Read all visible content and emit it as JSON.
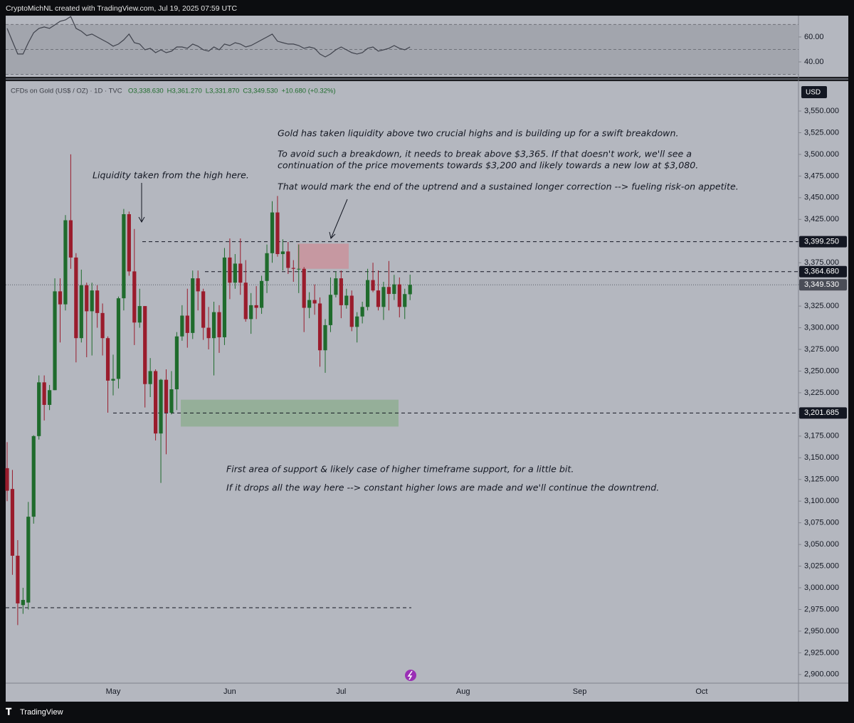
{
  "header": {
    "caption": "CryptoMichNL created with TradingView.com, Jul 19, 2025 07:59 UTC",
    "symbol": "CFDs on Gold (US$ / OZ) · 1D · TVC",
    "ohlc": [
      "O3,338.630",
      "H3,361.270",
      "L3,331.870",
      "C3,349.530",
      "+10.680 (+0.32%)"
    ],
    "currency": "USD"
  },
  "footer": {
    "brand": "TradingView"
  },
  "chart_data": {
    "type": "candlestick",
    "up_color": "#1f6b2c",
    "down_color": "#9a1c2c",
    "categories": [
      null,
      null,
      null,
      null,
      null,
      null,
      null,
      null,
      null,
      null,
      null,
      null,
      null,
      null,
      null,
      null,
      null,
      null,
      null,
      null,
      "May",
      null,
      null,
      null,
      null,
      null,
      null,
      null,
      null,
      null,
      null,
      null,
      null,
      null,
      null,
      null,
      null,
      null,
      null,
      null,
      null,
      null,
      "Jun",
      null,
      null,
      null,
      null,
      null,
      null,
      null,
      null,
      null,
      null,
      null,
      null,
      null,
      null,
      null,
      null,
      null,
      null,
      null,
      null,
      "Jul",
      null,
      null,
      null,
      null,
      null,
      null,
      null,
      null,
      null,
      null,
      null,
      null,
      null,
      null,
      null,
      null,
      null,
      null,
      null,
      null,
      null,
      null,
      "Aug",
      null,
      null,
      null,
      null,
      null,
      null,
      null,
      null,
      null,
      null,
      null,
      null,
      null,
      null,
      null,
      null,
      null,
      null,
      null,
      null,
      null,
      "Sep",
      null,
      null,
      null,
      null,
      null,
      null,
      null,
      null,
      null,
      null,
      null,
      null,
      null,
      null,
      null,
      null,
      null,
      null,
      null,
      null,
      null,
      null,
      "Oct",
      null,
      null,
      null,
      null,
      null,
      null,
      null,
      null,
      null,
      null,
      null,
      null,
      null,
      null,
      null,
      null,
      null
    ],
    "open": [
      3138,
      3114,
      3037,
      2980,
      2983,
      3082,
      3175,
      3237,
      3211,
      3228,
      3342,
      3327,
      3424,
      3381,
      3288,
      3349,
      3319,
      3343,
      3317,
      3288,
      3239,
      3241,
      3334,
      3431,
      3365,
      3306,
      3325,
      3235,
      3250,
      3178,
      3240,
      3202,
      3229,
      3290,
      3314,
      3294,
      3357,
      3342,
      3300,
      3288,
      3318,
      3289,
      3381,
      3352,
      3374,
      3352,
      3310,
      3326,
      3323,
      3354,
      3386,
      3433,
      3385,
      3388,
      3369,
      3368,
      3368,
      3323,
      3332,
      3328,
      3274,
      3303,
      3338,
      3357,
      3326,
      3337,
      3301,
      3313,
      3324,
      3355,
      3343,
      3324,
      3347,
      3339,
      3350,
      3324,
      3338.63,
      null,
      null,
      null,
      null,
      null,
      null,
      null,
      null,
      null,
      null,
      null,
      null,
      null,
      null,
      null,
      null,
      null,
      null,
      null,
      null,
      null,
      null,
      null,
      null,
      null,
      null,
      null,
      null,
      null,
      null,
      null,
      null,
      null,
      null,
      null,
      null,
      null,
      null,
      null,
      null,
      null,
      null,
      null,
      null,
      null,
      null,
      null,
      null,
      null,
      null,
      null,
      null,
      null,
      null,
      null,
      null,
      null,
      null,
      null,
      null,
      null,
      null,
      null,
      null,
      null,
      null,
      null,
      null,
      null,
      null,
      null,
      null
    ],
    "high": [
      3168,
      3136,
      3055,
      3000,
      3099,
      3176,
      3245,
      3245,
      3234,
      3357,
      3357,
      3430,
      3500,
      3386,
      3367,
      3352,
      3352,
      3349,
      3328,
      3290,
      3269,
      3336,
      3437,
      3434,
      3414,
      3345,
      3325,
      3265,
      3252,
      3241,
      3252,
      3250,
      3295,
      3326,
      3345,
      3366,
      3366,
      3345,
      3324,
      3330,
      3326,
      3392,
      3403,
      3385,
      3403,
      3378,
      3340,
      3348,
      3360,
      3396,
      3446,
      3452,
      3402,
      3399,
      3378,
      3396,
      3370,
      3341,
      3350,
      3335,
      3310,
      3358,
      3365,
      3366,
      3345,
      3343,
      3318,
      3330,
      3368,
      3375,
      3366,
      3353,
      3377,
      3361,
      3358,
      3345,
      3361.27,
      null,
      null,
      null,
      null,
      null,
      null,
      null,
      null,
      null,
      null,
      null,
      null,
      null,
      null,
      null,
      null,
      null,
      null,
      null,
      null,
      null,
      null,
      null,
      null,
      null,
      null,
      null,
      null,
      null,
      null,
      null,
      null,
      null,
      null,
      null,
      null,
      null,
      null,
      null,
      null,
      null,
      null,
      null,
      null,
      null,
      null,
      null,
      null,
      null,
      null,
      null,
      null,
      null,
      null,
      null,
      null,
      null,
      null,
      null,
      null,
      null,
      null,
      null,
      null,
      null,
      null,
      null,
      null,
      null,
      null,
      null,
      null
    ],
    "low": [
      3100,
      3015,
      2957,
      2970,
      2975,
      3074,
      3171,
      3193,
      3205,
      3228,
      3283,
      3320,
      3368,
      3260,
      3283,
      3266,
      3268,
      3300,
      3268,
      3202,
      3222,
      3230,
      3320,
      3360,
      3280,
      3300,
      3208,
      3220,
      3170,
      3121,
      3154,
      3200,
      3205,
      3285,
      3277,
      3287,
      3320,
      3286,
      3275,
      3245,
      3271,
      3280,
      3333,
      3345,
      3338,
      3307,
      3293,
      3310,
      3316,
      3340,
      3375,
      3382,
      3366,
      3362,
      3353,
      3340,
      3295,
      3311,
      3315,
      3255,
      3248,
      3295,
      3335,
      3311,
      3322,
      3296,
      3283,
      3305,
      3320,
      3341,
      3320,
      3309,
      3320,
      3332,
      3312,
      3310,
      3331.87,
      null,
      null,
      null,
      null,
      null,
      null,
      null,
      null,
      null,
      null,
      null,
      null,
      null,
      null,
      null,
      null,
      null,
      null,
      null,
      null,
      null,
      null,
      null,
      null,
      null,
      null,
      null,
      null,
      null,
      null,
      null,
      null,
      null,
      null,
      null,
      null,
      null,
      null,
      null,
      null,
      null,
      null,
      null,
      null,
      null,
      null,
      null,
      null,
      null,
      null,
      null,
      null,
      null,
      null,
      null,
      null,
      null,
      null,
      null,
      null,
      null,
      null,
      null,
      null,
      null,
      null,
      null,
      null,
      null,
      null,
      null,
      null
    ],
    "close": [
      3112,
      3037,
      2982,
      2986,
      3082,
      3175,
      3237,
      3211,
      3228,
      3342,
      3327,
      3424,
      3381,
      3288,
      3349,
      3319,
      3343,
      3317,
      3288,
      3239,
      3241,
      3334,
      3431,
      3365,
      3306,
      3325,
      3235,
      3250,
      3178,
      3240,
      3202,
      3229,
      3290,
      3314,
      3294,
      3357,
      3342,
      3300,
      3288,
      3318,
      3289,
      3381,
      3352,
      3374,
      3352,
      3310,
      3326,
      3323,
      3354,
      3386,
      3433,
      3385,
      3388,
      3369,
      3368,
      3368,
      3323,
      3332,
      3328,
      3274,
      3303,
      3338,
      3357,
      3326,
      3337,
      3301,
      3313,
      3324,
      3355,
      3343,
      3324,
      3347,
      3339,
      3350,
      3324,
      3338.85,
      3349.53,
      null,
      null,
      null,
      null,
      null,
      null,
      null,
      null,
      null,
      null,
      null,
      null,
      null,
      null,
      null,
      null,
      null,
      null,
      null,
      null,
      null,
      null,
      null,
      null,
      null,
      null,
      null,
      null,
      null,
      null,
      null,
      null,
      null,
      null,
      null,
      null,
      null,
      null,
      null,
      null,
      null,
      null,
      null,
      null,
      null,
      null,
      null,
      null,
      null,
      null,
      null,
      null,
      null,
      null,
      null,
      null,
      null,
      null,
      null,
      null,
      null,
      null,
      null,
      null,
      null,
      null,
      null,
      null,
      null,
      null,
      null,
      null
    ],
    "ylim": [
      2890,
      3584.5
    ],
    "yticks": [
      {
        "value": 2900,
        "label": "2,900.000"
      },
      {
        "value": 2925,
        "label": "2,925.000"
      },
      {
        "value": 2950,
        "label": "2,950.000"
      },
      {
        "value": 2975,
        "label": "2,975.000"
      },
      {
        "value": 3000,
        "label": "3,000.000"
      },
      {
        "value": 3025,
        "label": "3,025.000"
      },
      {
        "value": 3050,
        "label": "3,050.000"
      },
      {
        "value": 3075,
        "label": "3,075.000"
      },
      {
        "value": 3100,
        "label": "3,100.000"
      },
      {
        "value": 3125,
        "label": "3,125.000"
      },
      {
        "value": 3150,
        "label": "3,150.000"
      },
      {
        "value": 3175,
        "label": "3,175.000"
      },
      {
        "value": 3200,
        "label": "3,200.000"
      },
      {
        "value": 3225,
        "label": "3,225.000"
      },
      {
        "value": 3250,
        "label": "3,250.000"
      },
      {
        "value": 3275,
        "label": "3,275.000"
      },
      {
        "value": 3300,
        "label": "3,300.000"
      },
      {
        "value": 3325,
        "label": "3,325.000"
      },
      {
        "value": 3350,
        "label": "3,350.000"
      },
      {
        "value": 3375,
        "label": "3,375.000"
      },
      {
        "value": 3400,
        "label": "3,400.000"
      },
      {
        "value": 3425,
        "label": "3,425.000"
      },
      {
        "value": 3450,
        "label": "3,450.000"
      },
      {
        "value": 3475,
        "label": "3,475.000"
      },
      {
        "value": 3500,
        "label": "3,500.000"
      },
      {
        "value": 3525,
        "label": "3,525.000"
      },
      {
        "value": 3550,
        "label": "3,550.000"
      }
    ],
    "levels": [
      {
        "value": 3399.25,
        "label": "3,399.250"
      },
      {
        "value": 3364.68,
        "label": "3,364.680"
      },
      {
        "value": 3201.685,
        "label": "3,201.685"
      },
      {
        "value": 2977
      }
    ],
    "last_price": {
      "value": 3349.53,
      "label": "3,349.530"
    },
    "zones": [
      {
        "top": 3397,
        "bottom": 3368,
        "color": "#c9939b"
      },
      {
        "top": 3217,
        "bottom": 3186,
        "color": "#8fae92"
      }
    ],
    "annotations": [
      "Liquidity taken from the high here.",
      "Gold has taken liquidity above two crucial highs and is building up for a swift breakdown.",
      "To avoid such a breakdown, it needs to break above $3,365. If that doesn't work, we'll see a",
      "continuation of the price movements towards $3,200 and likely towards a new low at $3,080.",
      "That would mark the end of the uptrend and a sustained longer correction --> fueling risk-on appetite.",
      "First area of support & likely case of higher timeframe support, for a little bit.",
      "If it drops all the way here --> constant higher lows are made and we'll continue the downtrend."
    ],
    "rsi": {
      "color": "#3f424c",
      "ylim": [
        28,
        77.1
      ],
      "yticks": [
        {
          "value": 40,
          "label": "40.00"
        },
        {
          "value": 60,
          "label": "60.00"
        }
      ],
      "hlines": [
        70,
        50,
        30
      ],
      "values": [
        66.9,
        56.6,
        46.3,
        46.3,
        55.4,
        63.4,
        66.9,
        68.0,
        66.9,
        69.7,
        72.6,
        73.7,
        76.5,
        66.9,
        64.6,
        61.1,
        62.3,
        60.0,
        57.7,
        55.4,
        52.6,
        54.3,
        57.7,
        62.3,
        55.4,
        54.3,
        49.7,
        50.9,
        47.4,
        49.7,
        47.4,
        48.6,
        52.0,
        52.0,
        50.9,
        54.3,
        52.6,
        49.7,
        48.6,
        52.0,
        49.7,
        54.3,
        53.1,
        55.4,
        54.3,
        52.0,
        53.1,
        55.4,
        57.7,
        60.0,
        62.3,
        56.6,
        55.4,
        54.3,
        54.3,
        53.1,
        50.9,
        52.0,
        50.9,
        46.3,
        44.0,
        46.3,
        49.7,
        52.0,
        49.7,
        47.4,
        46.3,
        47.4,
        50.9,
        52.0,
        48.6,
        49.7,
        50.9,
        53.1,
        50.9,
        49.7,
        52.0,
        null,
        null,
        null,
        null,
        null,
        null,
        null,
        null,
        null,
        null,
        null,
        null,
        null,
        null,
        null,
        null,
        null,
        null,
        null,
        null,
        null,
        null,
        null,
        null,
        null,
        null,
        null,
        null,
        null,
        null,
        null,
        null,
        null,
        null,
        null,
        null,
        null,
        null,
        null,
        null,
        null,
        null,
        null,
        null,
        null,
        null,
        null,
        null,
        null,
        null,
        null,
        null,
        null,
        null,
        null,
        null,
        null,
        null,
        null,
        null,
        null,
        null,
        null,
        null,
        null,
        null,
        null,
        null,
        null,
        null,
        null,
        null
      ]
    }
  }
}
